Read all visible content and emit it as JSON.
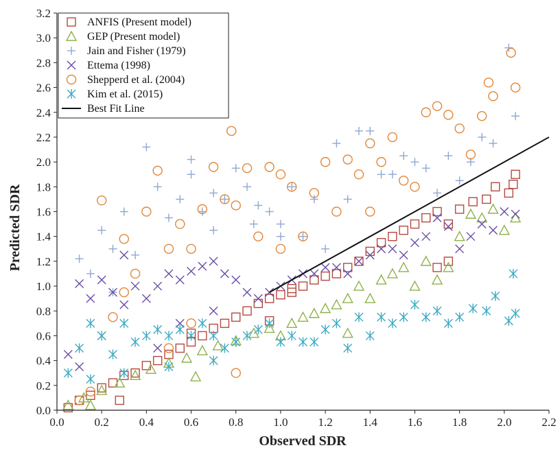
{
  "chart_data": {
    "type": "scatter",
    "xlabel": "Observed SDR",
    "ylabel": "Predicted SDR",
    "xlim": [
      0.0,
      2.2
    ],
    "ylim": [
      0.0,
      3.2
    ],
    "xticks": [
      "0.0",
      "0.2",
      "0.4",
      "0.6",
      "0.8",
      "1.0",
      "1.2",
      "1.4",
      "1.6",
      "1.8",
      "2.0",
      "2.2"
    ],
    "yticks": [
      "0.0",
      "0.2",
      "0.4",
      "0.6",
      "0.8",
      "1.0",
      "1.2",
      "1.4",
      "1.6",
      "1.8",
      "2.0",
      "2.2",
      "2.4",
      "2.6",
      "2.8",
      "3.0",
      "3.2"
    ],
    "grid": false,
    "legend_position": "top-left",
    "series": [
      {
        "name": "ANFIS (Present model)",
        "marker": "square",
        "color": "#b5493f",
        "points": [
          [
            0.05,
            0.02
          ],
          [
            0.1,
            0.08
          ],
          [
            0.15,
            0.12
          ],
          [
            0.2,
            0.18
          ],
          [
            0.25,
            0.22
          ],
          [
            0.3,
            0.28
          ],
          [
            0.35,
            0.3
          ],
          [
            0.4,
            0.36
          ],
          [
            0.45,
            0.4
          ],
          [
            0.5,
            0.45
          ],
          [
            0.55,
            0.5
          ],
          [
            0.6,
            0.55
          ],
          [
            0.65,
            0.6
          ],
          [
            0.7,
            0.66
          ],
          [
            0.75,
            0.7
          ],
          [
            0.8,
            0.75
          ],
          [
            0.85,
            0.8
          ],
          [
            0.9,
            0.86
          ],
          [
            0.95,
            0.9
          ],
          [
            1.0,
            0.93
          ],
          [
            1.05,
            0.98
          ],
          [
            1.1,
            1.0
          ],
          [
            1.15,
            1.05
          ],
          [
            1.2,
            1.08
          ],
          [
            1.25,
            1.1
          ],
          [
            1.3,
            1.15
          ],
          [
            1.35,
            1.2
          ],
          [
            1.4,
            1.28
          ],
          [
            1.45,
            1.35
          ],
          [
            1.5,
            1.4
          ],
          [
            1.55,
            1.45
          ],
          [
            1.6,
            1.5
          ],
          [
            1.65,
            1.55
          ],
          [
            1.7,
            1.6
          ],
          [
            1.75,
            1.5
          ],
          [
            1.7,
            1.15
          ],
          [
            1.75,
            1.2
          ],
          [
            1.8,
            1.62
          ],
          [
            1.86,
            1.68
          ],
          [
            1.92,
            1.7
          ],
          [
            1.96,
            1.8
          ],
          [
            2.02,
            1.75
          ],
          [
            2.04,
            1.82
          ],
          [
            2.05,
            1.9
          ],
          [
            0.28,
            0.08
          ],
          [
            0.6,
            0.62
          ],
          [
            0.95,
            0.72
          ],
          [
            1.05,
            0.95
          ]
        ]
      },
      {
        "name": "GEP (Present model)",
        "marker": "triangle",
        "color": "#8fb14a",
        "points": [
          [
            0.05,
            0.04
          ],
          [
            0.12,
            0.1
          ],
          [
            0.2,
            0.16
          ],
          [
            0.28,
            0.22
          ],
          [
            0.35,
            0.28
          ],
          [
            0.42,
            0.33
          ],
          [
            0.5,
            0.38
          ],
          [
            0.58,
            0.42
          ],
          [
            0.65,
            0.48
          ],
          [
            0.72,
            0.52
          ],
          [
            0.8,
            0.56
          ],
          [
            0.88,
            0.62
          ],
          [
            0.95,
            0.66
          ],
          [
            1.0,
            0.6
          ],
          [
            1.05,
            0.7
          ],
          [
            1.1,
            0.75
          ],
          [
            1.15,
            0.78
          ],
          [
            1.2,
            0.82
          ],
          [
            1.25,
            0.85
          ],
          [
            1.3,
            0.9
          ],
          [
            1.35,
            1.0
          ],
          [
            1.4,
            0.9
          ],
          [
            1.45,
            1.05
          ],
          [
            1.5,
            1.1
          ],
          [
            1.55,
            1.15
          ],
          [
            1.6,
            1.0
          ],
          [
            1.65,
            1.2
          ],
          [
            1.7,
            1.05
          ],
          [
            1.75,
            1.15
          ],
          [
            1.8,
            1.4
          ],
          [
            1.85,
            1.58
          ],
          [
            1.9,
            1.55
          ],
          [
            1.95,
            1.62
          ],
          [
            2.0,
            1.45
          ],
          [
            2.05,
            1.55
          ],
          [
            0.62,
            0.27
          ],
          [
            0.15,
            0.04
          ],
          [
            1.3,
            0.62
          ]
        ]
      },
      {
        "name": "Jain and Fisher (1979)",
        "marker": "plus",
        "color": "#8fa6d4",
        "points": [
          [
            0.1,
            1.22
          ],
          [
            0.15,
            1.1
          ],
          [
            0.2,
            1.45
          ],
          [
            0.25,
            1.3
          ],
          [
            0.3,
            1.6
          ],
          [
            0.35,
            1.25
          ],
          [
            0.4,
            2.12
          ],
          [
            0.45,
            1.8
          ],
          [
            0.5,
            1.55
          ],
          [
            0.55,
            1.7
          ],
          [
            0.6,
            1.9
          ],
          [
            0.65,
            1.6
          ],
          [
            0.7,
            1.75
          ],
          [
            0.75,
            1.7
          ],
          [
            0.8,
            1.95
          ],
          [
            0.85,
            1.8
          ],
          [
            0.9,
            1.65
          ],
          [
            0.95,
            1.6
          ],
          [
            1.0,
            1.5
          ],
          [
            1.05,
            1.8
          ],
          [
            1.1,
            1.4
          ],
          [
            1.15,
            1.7
          ],
          [
            1.2,
            1.3
          ],
          [
            1.25,
            2.15
          ],
          [
            1.3,
            1.7
          ],
          [
            1.35,
            2.25
          ],
          [
            1.4,
            2.25
          ],
          [
            1.45,
            1.9
          ],
          [
            1.5,
            1.9
          ],
          [
            1.55,
            2.05
          ],
          [
            1.6,
            2.0
          ],
          [
            1.65,
            1.95
          ],
          [
            1.7,
            1.75
          ],
          [
            1.75,
            2.05
          ],
          [
            1.8,
            1.85
          ],
          [
            1.85,
            2.0
          ],
          [
            1.9,
            2.2
          ],
          [
            1.95,
            2.15
          ],
          [
            2.02,
            2.92
          ],
          [
            2.05,
            2.37
          ],
          [
            0.25,
            0.95
          ],
          [
            0.6,
            2.02
          ],
          [
            0.7,
            1.45
          ],
          [
            0.88,
            1.5
          ],
          [
            1.0,
            1.4
          ]
        ]
      },
      {
        "name": "Ettema (1998)",
        "marker": "x",
        "color": "#6a4ea3",
        "points": [
          [
            0.05,
            0.45
          ],
          [
            0.1,
            1.02
          ],
          [
            0.15,
            0.9
          ],
          [
            0.2,
            1.05
          ],
          [
            0.25,
            0.95
          ],
          [
            0.3,
            0.85
          ],
          [
            0.35,
            1.0
          ],
          [
            0.4,
            0.9
          ],
          [
            0.45,
            1.0
          ],
          [
            0.5,
            1.1
          ],
          [
            0.55,
            1.05
          ],
          [
            0.6,
            1.12
          ],
          [
            0.65,
            1.16
          ],
          [
            0.7,
            1.2
          ],
          [
            0.75,
            1.1
          ],
          [
            0.8,
            1.05
          ],
          [
            0.85,
            0.95
          ],
          [
            0.9,
            0.9
          ],
          [
            0.95,
            0.95
          ],
          [
            1.0,
            1.0
          ],
          [
            1.05,
            1.05
          ],
          [
            1.1,
            1.1
          ],
          [
            1.15,
            1.1
          ],
          [
            1.2,
            1.15
          ],
          [
            1.25,
            1.15
          ],
          [
            1.3,
            1.1
          ],
          [
            1.35,
            1.2
          ],
          [
            1.4,
            1.25
          ],
          [
            1.45,
            1.3
          ],
          [
            1.5,
            1.3
          ],
          [
            1.55,
            1.25
          ],
          [
            1.6,
            1.35
          ],
          [
            1.65,
            1.4
          ],
          [
            1.7,
            1.55
          ],
          [
            1.75,
            1.48
          ],
          [
            1.8,
            1.3
          ],
          [
            1.85,
            1.4
          ],
          [
            1.9,
            1.5
          ],
          [
            1.95,
            1.45
          ],
          [
            2.0,
            1.6
          ],
          [
            2.05,
            1.58
          ],
          [
            0.1,
            0.35
          ],
          [
            0.2,
            0.6
          ],
          [
            0.3,
            1.25
          ],
          [
            0.45,
            0.5
          ],
          [
            0.55,
            0.7
          ],
          [
            0.7,
            0.8
          ]
        ]
      },
      {
        "name": "Shepperd et al. (2004)",
        "marker": "circle",
        "color": "#e0873a",
        "points": [
          [
            0.1,
            0.08
          ],
          [
            0.15,
            0.15
          ],
          [
            0.2,
            1.69
          ],
          [
            0.25,
            0.75
          ],
          [
            0.3,
            1.38
          ],
          [
            0.35,
            1.1
          ],
          [
            0.4,
            1.6
          ],
          [
            0.45,
            1.93
          ],
          [
            0.5,
            1.3
          ],
          [
            0.55,
            1.5
          ],
          [
            0.6,
            1.3
          ],
          [
            0.65,
            1.62
          ],
          [
            0.7,
            1.96
          ],
          [
            0.75,
            1.7
          ],
          [
            0.78,
            2.25
          ],
          [
            0.8,
            1.65
          ],
          [
            0.85,
            1.95
          ],
          [
            0.9,
            1.4
          ],
          [
            0.95,
            1.96
          ],
          [
            1.0,
            1.9
          ],
          [
            1.05,
            1.8
          ],
          [
            1.1,
            1.4
          ],
          [
            1.15,
            1.75
          ],
          [
            1.2,
            2.0
          ],
          [
            1.25,
            1.6
          ],
          [
            1.3,
            2.02
          ],
          [
            1.35,
            1.9
          ],
          [
            1.4,
            2.15
          ],
          [
            1.45,
            2.0
          ],
          [
            1.5,
            2.2
          ],
          [
            1.55,
            1.85
          ],
          [
            1.6,
            1.8
          ],
          [
            1.65,
            2.4
          ],
          [
            1.7,
            2.45
          ],
          [
            1.75,
            2.38
          ],
          [
            1.8,
            2.27
          ],
          [
            1.85,
            2.06
          ],
          [
            1.9,
            2.37
          ],
          [
            1.95,
            2.53
          ],
          [
            1.93,
            2.64
          ],
          [
            2.03,
            2.88
          ],
          [
            2.05,
            2.6
          ],
          [
            0.8,
            0.3
          ],
          [
            0.3,
            0.95
          ],
          [
            0.5,
            0.5
          ],
          [
            0.6,
            0.7
          ],
          [
            1.0,
            1.3
          ],
          [
            1.4,
            1.6
          ]
        ]
      },
      {
        "name": "Kim et al. (2015)",
        "marker": "asterisk",
        "color": "#3eaac2",
        "points": [
          [
            0.05,
            0.3
          ],
          [
            0.1,
            0.5
          ],
          [
            0.15,
            0.7
          ],
          [
            0.2,
            0.6
          ],
          [
            0.25,
            0.45
          ],
          [
            0.3,
            0.7
          ],
          [
            0.35,
            0.55
          ],
          [
            0.4,
            0.6
          ],
          [
            0.45,
            0.65
          ],
          [
            0.5,
            0.6
          ],
          [
            0.55,
            0.65
          ],
          [
            0.6,
            0.6
          ],
          [
            0.65,
            0.7
          ],
          [
            0.7,
            0.6
          ],
          [
            0.75,
            0.5
          ],
          [
            0.8,
            0.55
          ],
          [
            0.85,
            0.6
          ],
          [
            0.9,
            0.65
          ],
          [
            0.95,
            0.7
          ],
          [
            1.0,
            0.55
          ],
          [
            1.05,
            0.6
          ],
          [
            1.1,
            0.55
          ],
          [
            1.15,
            0.55
          ],
          [
            1.2,
            0.65
          ],
          [
            1.25,
            0.7
          ],
          [
            1.3,
            0.5
          ],
          [
            1.35,
            0.75
          ],
          [
            1.4,
            0.6
          ],
          [
            1.45,
            0.75
          ],
          [
            1.5,
            0.7
          ],
          [
            1.55,
            0.75
          ],
          [
            1.6,
            0.85
          ],
          [
            1.65,
            0.75
          ],
          [
            1.7,
            0.8
          ],
          [
            1.75,
            0.7
          ],
          [
            1.8,
            0.75
          ],
          [
            1.86,
            0.82
          ],
          [
            1.92,
            0.8
          ],
          [
            1.96,
            0.92
          ],
          [
            2.02,
            0.72
          ],
          [
            2.04,
            1.1
          ],
          [
            2.05,
            0.78
          ],
          [
            0.15,
            0.25
          ],
          [
            0.3,
            0.3
          ],
          [
            0.5,
            0.35
          ],
          [
            0.7,
            0.4
          ]
        ]
      },
      {
        "name": "Best Fit Line",
        "marker": "line",
        "color": "#111111",
        "points": [
          [
            0.95,
            0.95
          ],
          [
            2.2,
            2.2
          ]
        ]
      }
    ]
  }
}
